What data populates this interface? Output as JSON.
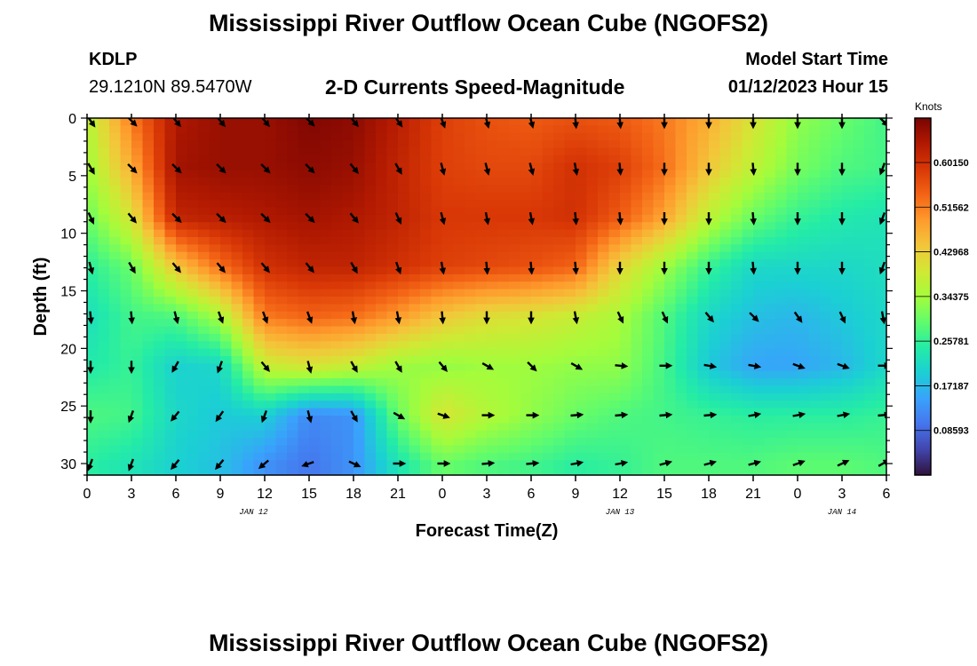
{
  "header": {
    "title": "Mississippi River Outflow Ocean Cube (NGOFS2)",
    "station": "KDLP",
    "coords": "29.1210N  89.5470W",
    "subtitle": "2-D Currents Speed-Magnitude",
    "model_label": "Model Start Time",
    "model_time": "01/12/2023 Hour 15"
  },
  "footer": {
    "title": "Mississippi River Outflow Ocean Cube (NGOFS2)"
  },
  "chart_data": {
    "type": "heatmap",
    "xlabel": "Forecast Time(Z)",
    "ylabel": "Depth (ft)",
    "x_ticks": [
      "0",
      "3",
      "6",
      "9",
      "12",
      "15",
      "18",
      "21",
      "0",
      "3",
      "6",
      "9",
      "12",
      "15",
      "18",
      "21",
      "0",
      "3",
      "6"
    ],
    "date_labels": [
      {
        "text": "JAN 12",
        "tick_index": 3.75
      },
      {
        "text": "JAN 13",
        "tick_index": 12
      },
      {
        "text": "JAN 14",
        "tick_index": 17
      }
    ],
    "y_ticks": [
      0,
      5,
      10,
      15,
      20,
      25,
      30
    ],
    "ylim": [
      0,
      31
    ],
    "colorbar": {
      "label": "Knots",
      "ticks": [
        "0.60150",
        "0.51562",
        "0.42968",
        "0.34375",
        "0.25781",
        "0.17187",
        "0.08593"
      ],
      "range": [
        0.0,
        0.687
      ],
      "colors": [
        "#30123b",
        "#4145ab",
        "#4675ed",
        "#39a2fc",
        "#1bcfd4",
        "#24eca6",
        "#61fc6c",
        "#a4fc3b",
        "#d1e834",
        "#f3c63a",
        "#fe9b2d",
        "#f36315",
        "#d93806",
        "#b11901",
        "#7a0402"
      ]
    },
    "speed_grid": {
      "x_index": [
        0,
        1,
        2,
        3,
        4,
        5,
        6,
        7,
        8,
        9,
        10,
        11,
        12,
        13,
        14,
        15,
        16,
        17,
        18
      ],
      "depth": [
        0,
        4.3,
        8.6,
        12.9,
        17.2,
        21.5,
        25.8,
        30
      ],
      "values": [
        [
          0.36,
          0.52,
          0.64,
          0.66,
          0.66,
          0.68,
          0.67,
          0.63,
          0.58,
          0.56,
          0.55,
          0.56,
          0.55,
          0.52,
          0.47,
          0.4,
          0.33,
          0.3,
          0.27
        ],
        [
          0.34,
          0.47,
          0.65,
          0.66,
          0.66,
          0.67,
          0.66,
          0.62,
          0.58,
          0.57,
          0.57,
          0.6,
          0.58,
          0.53,
          0.44,
          0.37,
          0.31,
          0.28,
          0.27
        ],
        [
          0.3,
          0.4,
          0.62,
          0.63,
          0.64,
          0.65,
          0.64,
          0.62,
          0.59,
          0.59,
          0.59,
          0.6,
          0.55,
          0.48,
          0.37,
          0.3,
          0.26,
          0.24,
          0.23
        ],
        [
          0.25,
          0.3,
          0.44,
          0.53,
          0.6,
          0.62,
          0.62,
          0.6,
          0.58,
          0.57,
          0.56,
          0.54,
          0.42,
          0.34,
          0.26,
          0.21,
          0.21,
          0.21,
          0.22
        ],
        [
          0.22,
          0.27,
          0.28,
          0.35,
          0.52,
          0.54,
          0.53,
          0.49,
          0.44,
          0.41,
          0.4,
          0.38,
          0.35,
          0.28,
          0.21,
          0.18,
          0.17,
          0.19,
          0.21
        ],
        [
          0.24,
          0.26,
          0.2,
          0.21,
          0.38,
          0.4,
          0.38,
          0.34,
          0.33,
          0.34,
          0.34,
          0.33,
          0.33,
          0.27,
          0.19,
          0.15,
          0.15,
          0.17,
          0.21
        ],
        [
          0.28,
          0.27,
          0.21,
          0.19,
          0.2,
          0.12,
          0.13,
          0.3,
          0.4,
          0.36,
          0.33,
          0.3,
          0.28,
          0.27,
          0.26,
          0.25,
          0.25,
          0.25,
          0.26
        ],
        [
          0.25,
          0.23,
          0.2,
          0.18,
          0.13,
          0.1,
          0.13,
          0.23,
          0.3,
          0.28,
          0.27,
          0.25,
          0.26,
          0.28,
          0.28,
          0.28,
          0.29,
          0.29,
          0.28
        ]
      ]
    },
    "arrows": {
      "x_index": [
        0,
        1,
        2,
        3,
        4,
        5,
        6,
        7,
        8,
        9,
        10,
        11,
        12,
        13,
        14,
        15,
        16,
        17,
        18
      ],
      "depth": [
        0,
        4.3,
        8.6,
        12.9,
        17.2,
        21.5,
        25.8,
        30
      ],
      "angles_deg": [
        [
          145,
          135,
          140,
          140,
          140,
          135,
          140,
          145,
          160,
          165,
          165,
          175,
          175,
          180,
          180,
          180,
          180,
          180,
          135
        ],
        [
          150,
          135,
          135,
          135,
          135,
          135,
          140,
          150,
          165,
          165,
          165,
          170,
          175,
          180,
          180,
          175,
          180,
          180,
          200
        ],
        [
          155,
          140,
          135,
          135,
          135,
          135,
          140,
          155,
          165,
          170,
          170,
          175,
          175,
          180,
          180,
          175,
          180,
          180,
          200
        ],
        [
          165,
          150,
          140,
          140,
          140,
          140,
          150,
          160,
          170,
          175,
          175,
          175,
          180,
          180,
          180,
          175,
          180,
          180,
          200
        ],
        [
          175,
          175,
          165,
          160,
          160,
          160,
          170,
          170,
          175,
          180,
          180,
          170,
          155,
          155,
          140,
          135,
          145,
          155,
          170
        ],
        [
          180,
          180,
          210,
          200,
          140,
          165,
          150,
          150,
          140,
          120,
          135,
          120,
          95,
          90,
          100,
          100,
          110,
          110,
          90
        ],
        [
          180,
          200,
          220,
          215,
          200,
          165,
          150,
          120,
          110,
          90,
          90,
          85,
          85,
          85,
          85,
          80,
          80,
          80,
          85
        ],
        [
          200,
          200,
          220,
          220,
          230,
          250,
          115,
          90,
          90,
          85,
          85,
          80,
          80,
          75,
          75,
          75,
          70,
          65,
          60
        ]
      ]
    }
  }
}
